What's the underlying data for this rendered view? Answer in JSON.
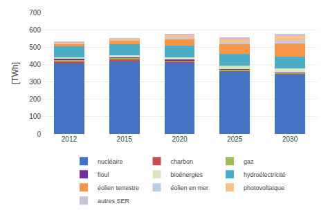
{
  "chart_data": {
    "type": "bar",
    "stacked": true,
    "categories": [
      "2012",
      "2015",
      "2020",
      "2025",
      "2030"
    ],
    "series": [
      {
        "name": "nucléaire",
        "color": "#4472C4",
        "values": [
          404,
          416,
          411,
          360,
          346
        ]
      },
      {
        "name": "charbon",
        "color": "#C0504D",
        "values": [
          14,
          14,
          6,
          5,
          3
        ]
      },
      {
        "name": "gaz",
        "color": "#9BBB59",
        "values": [
          10,
          8,
          8,
          6,
          4
        ]
      },
      {
        "name": "fioul",
        "color": "#7030A0",
        "values": [
          4,
          3,
          3,
          3,
          2
        ]
      },
      {
        "name": "bioénergies",
        "color": "#D7E4BC",
        "values": [
          8,
          12,
          15,
          18,
          22
        ]
      },
      {
        "name": "hydroélectricité",
        "color": "#4BACC6",
        "values": [
          65,
          65,
          68,
          70,
          68
        ]
      },
      {
        "name": "éolien terrestre",
        "color": "#F79646",
        "values": [
          15,
          20,
          36,
          55,
          75
        ]
      },
      {
        "name": "éolien en mer",
        "color": "#B8CCE4",
        "values": [
          0,
          0,
          5,
          8,
          15
        ]
      },
      {
        "name": "photovoltaïque",
        "color": "#FAC090",
        "values": [
          5,
          8,
          15,
          20,
          28
        ]
      },
      {
        "name": "autres SER",
        "color": "#CCC1DA",
        "values": [
          5,
          7,
          8,
          10,
          12
        ]
      }
    ],
    "ylabel": "[TWh]",
    "ylim": [
      0,
      700
    ],
    "yticks": [
      0,
      100,
      200,
      300,
      400,
      500,
      600,
      700
    ],
    "grid": true,
    "legend": "bottom"
  }
}
